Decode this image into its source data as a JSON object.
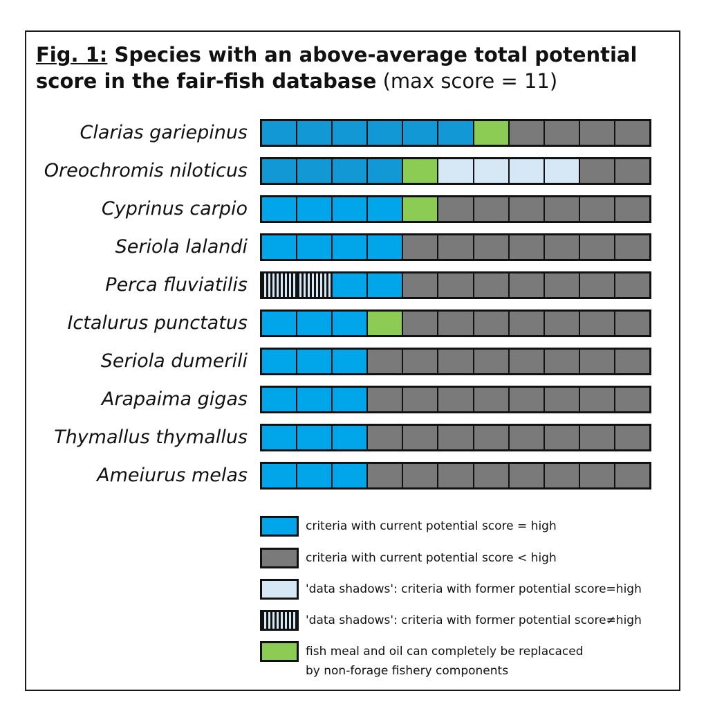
{
  "title": {
    "fig_label": "Fig. 1:",
    "bold_text": " Species with an above-average total potential score in the fair-fish database",
    "normal_text": " (max score = 11)"
  },
  "colors": {
    "high": "#00a6e9",
    "high_dark": "#1298d4",
    "low": "#7a7a7a",
    "shadow_high": "#d6e8f6",
    "shadow_not_high": "striped black/light-blue",
    "fishmeal": "#8ccc55"
  },
  "chart_data": {
    "type": "table",
    "max_score": 11,
    "cell_codes": {
      "H": "criteria with current potential score = high",
      "L": "criteria with current potential score < high",
      "S": "'data shadows': criteria with former potential score=high",
      "X": "'data shadows': criteria with former potential score≠high",
      "G": "fish meal and oil can completely be replacaced by non-forage fishery components"
    },
    "species": [
      {
        "name": "Clarias gariepinus",
        "cells": [
          "H",
          "H",
          "H",
          "H",
          "H",
          "H",
          "G",
          "L",
          "L",
          "L",
          "L"
        ]
      },
      {
        "name": "Oreochromis niloticus",
        "cells": [
          "H",
          "H",
          "H",
          "H",
          "G",
          "S",
          "S",
          "S",
          "S",
          "L",
          "L"
        ]
      },
      {
        "name": "Cyprinus carpio",
        "cells": [
          "H",
          "H",
          "H",
          "H",
          "G",
          "L",
          "L",
          "L",
          "L",
          "L",
          "L"
        ]
      },
      {
        "name": "Seriola lalandi",
        "cells": [
          "H",
          "H",
          "H",
          "H",
          "L",
          "L",
          "L",
          "L",
          "L",
          "L",
          "L"
        ]
      },
      {
        "name": "Perca fluviatilis",
        "cells": [
          "X",
          "X",
          "H",
          "H",
          "L",
          "L",
          "L",
          "L",
          "L",
          "L",
          "L"
        ]
      },
      {
        "name": "Ictalurus punctatus",
        "cells": [
          "H",
          "H",
          "H",
          "G",
          "L",
          "L",
          "L",
          "L",
          "L",
          "L",
          "L"
        ]
      },
      {
        "name": "Seriola dumerili",
        "cells": [
          "H",
          "H",
          "H",
          "L",
          "L",
          "L",
          "L",
          "L",
          "L",
          "L",
          "L"
        ]
      },
      {
        "name": "Arapaima gigas",
        "cells": [
          "H",
          "H",
          "H",
          "L",
          "L",
          "L",
          "L",
          "L",
          "L",
          "L",
          "L"
        ]
      },
      {
        "name": "Thymallus thymallus",
        "cells": [
          "H",
          "H",
          "H",
          "L",
          "L",
          "L",
          "L",
          "L",
          "L",
          "L",
          "L"
        ]
      },
      {
        "name": "Ameiurus melas",
        "cells": [
          "H",
          "H",
          "H",
          "L",
          "L",
          "L",
          "L",
          "L",
          "L",
          "L",
          "L"
        ]
      }
    ]
  },
  "legend": [
    {
      "code": "H",
      "label": "criteria with current potential score = high"
    },
    {
      "code": "L",
      "label": "criteria with current potential score < high"
    },
    {
      "code": "S",
      "label": "'data shadows': criteria with former potential score=high"
    },
    {
      "code": "X",
      "label": "'data shadows': criteria with former potential score≠high"
    },
    {
      "code": "G",
      "label_line1": "fish meal and oil can completely be replacaced",
      "label_line2": "by non-forage fishery components"
    }
  ]
}
